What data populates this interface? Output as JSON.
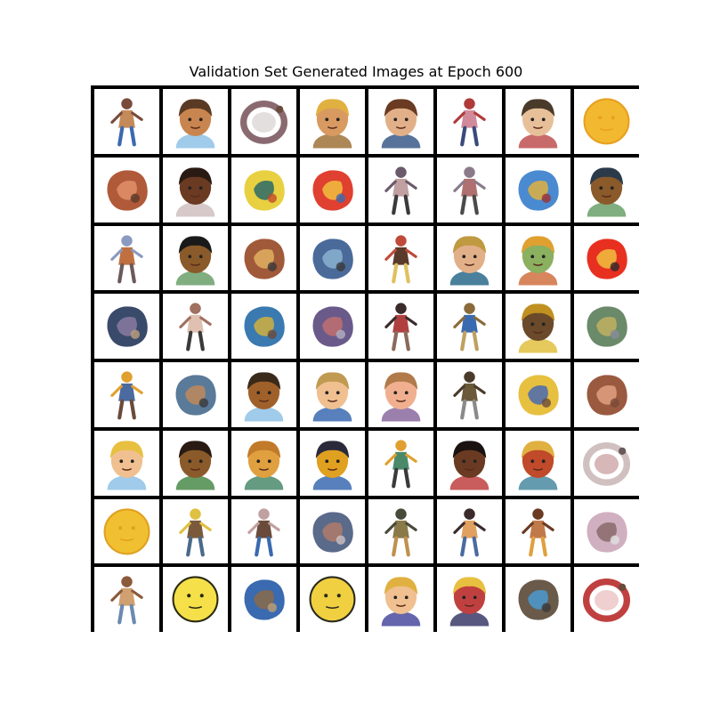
{
  "figure": {
    "title": "Validation Set Generated Images at Epoch 600",
    "rows": 8,
    "cols": 8,
    "frame_color": "#000000",
    "cell_background": "#ffffff"
  },
  "cells": [
    {
      "subject": "figure",
      "colors": [
        "#7a4a3a",
        "#c48a5a",
        "#3a6ab0"
      ]
    },
    {
      "subject": "face",
      "colors": [
        "#5a3a24",
        "#c9854f",
        "#8fc2e6"
      ]
    },
    {
      "subject": "ring",
      "colors": [
        "#8a6a70",
        "#c9c0c0",
        "#6a4a3a"
      ]
    },
    {
      "subject": "face",
      "colors": [
        "#e0b040",
        "#d89a60",
        "#a0723a"
      ]
    },
    {
      "subject": "face",
      "colors": [
        "#6a3a22",
        "#e2b088",
        "#3a5a8a"
      ]
    },
    {
      "subject": "figure",
      "colors": [
        "#b03a3a",
        "#d08a9a",
        "#3a4a7a"
      ]
    },
    {
      "subject": "face",
      "colors": [
        "#4a3a2a",
        "#e7c09a",
        "#c05050"
      ]
    },
    {
      "subject": "round",
      "colors": [
        "#f2b830",
        "#e8a020",
        "#2a1a10"
      ]
    },
    {
      "subject": "blob",
      "colors": [
        "#b05a3a",
        "#e0906a",
        "#5a3a2a"
      ]
    },
    {
      "subject": "face",
      "colors": [
        "#2a1a14",
        "#6a3a22",
        "#d0c0c0"
      ]
    },
    {
      "subject": "blob",
      "colors": [
        "#e8d040",
        "#2a6a6a",
        "#c04a2a"
      ]
    },
    {
      "subject": "blob",
      "colors": [
        "#e04030",
        "#f0c040",
        "#3a6ab0"
      ]
    },
    {
      "subject": "figure",
      "colors": [
        "#6a5a6a",
        "#c0a0a0",
        "#3a3a3a"
      ]
    },
    {
      "subject": "figure",
      "colors": [
        "#8a7a8a",
        "#b07070",
        "#4a4a4a"
      ]
    },
    {
      "subject": "blob",
      "colors": [
        "#4a8ad0",
        "#e0b040",
        "#a03030"
      ]
    },
    {
      "subject": "face",
      "colors": [
        "#2a3a4a",
        "#8a5a2a",
        "#6aa06a"
      ]
    },
    {
      "subject": "figure",
      "colors": [
        "#8a9ac0",
        "#c07040",
        "#6a5a5a"
      ]
    },
    {
      "subject": "face",
      "colors": [
        "#1a1a1a",
        "#8a5a2a",
        "#6aa06a"
      ]
    },
    {
      "subject": "blob",
      "colors": [
        "#a05a3a",
        "#e0b060",
        "#3a3a3a"
      ]
    },
    {
      "subject": "blob",
      "colors": [
        "#4a6a9a",
        "#8ab0d0",
        "#3a3a3a"
      ]
    },
    {
      "subject": "figure",
      "colors": [
        "#c04a3a",
        "#5a3a2a",
        "#e0c060"
      ]
    },
    {
      "subject": "face",
      "colors": [
        "#c09a40",
        "#e2b088",
        "#2a6a8a"
      ]
    },
    {
      "subject": "face",
      "colors": [
        "#e0a030",
        "#8ab060",
        "#d07040"
      ]
    },
    {
      "subject": "blob",
      "colors": [
        "#e83020",
        "#f0c040",
        "#2a2a2a"
      ]
    },
    {
      "subject": "blob",
      "colors": [
        "#3a4a6a",
        "#8a7aa0",
        "#c0a080"
      ]
    },
    {
      "subject": "figure",
      "colors": [
        "#a07060",
        "#e0c0b0",
        "#3a3a3a"
      ]
    },
    {
      "subject": "blob",
      "colors": [
        "#3a7ab0",
        "#d0b040",
        "#6a4a3a"
      ]
    },
    {
      "subject": "blob",
      "colors": [
        "#6a5a8a",
        "#c07070",
        "#b0b0c0"
      ]
    },
    {
      "subject": "figure",
      "colors": [
        "#3a2a2a",
        "#b04040",
        "#8a6a5a"
      ]
    },
    {
      "subject": "figure",
      "colors": [
        "#8a6a3a",
        "#3a6ab0",
        "#c0a060"
      ]
    },
    {
      "subject": "face",
      "colors": [
        "#c09020",
        "#6a4a2a",
        "#e0c040"
      ]
    },
    {
      "subject": "blob",
      "colors": [
        "#6a8a6a",
        "#c0b060",
        "#8a8a9a"
      ]
    },
    {
      "subject": "figure",
      "colors": [
        "#e0a030",
        "#4a6aa0",
        "#6a4a3a"
      ]
    },
    {
      "subject": "blob",
      "colors": [
        "#5a7a9a",
        "#c08a5a",
        "#3a3a3a"
      ]
    },
    {
      "subject": "face",
      "colors": [
        "#3a2a1a",
        "#a0602a",
        "#8fc2e6"
      ]
    },
    {
      "subject": "face",
      "colors": [
        "#c09a50",
        "#f0c090",
        "#3a6ab0"
      ]
    },
    {
      "subject": "face",
      "colors": [
        "#b07a4a",
        "#f0b090",
        "#8a6aa0"
      ]
    },
    {
      "subject": "figure",
      "colors": [
        "#4a3a2a",
        "#6a5a3a",
        "#8a8a8a"
      ]
    },
    {
      "subject": "blob",
      "colors": [
        "#e8c040",
        "#4a6ab0",
        "#6a4a3a"
      ]
    },
    {
      "subject": "blob",
      "colors": [
        "#9a5a40",
        "#e0a080",
        "#7a4a3a"
      ]
    },
    {
      "subject": "face",
      "colors": [
        "#e8c040",
        "#f0c090",
        "#8fc2e6"
      ]
    },
    {
      "subject": "face",
      "colors": [
        "#2a1a14",
        "#8a5a2a",
        "#4a8a4a"
      ]
    },
    {
      "subject": "face",
      "colors": [
        "#c07a2a",
        "#e0a040",
        "#4a8a6a"
      ]
    },
    {
      "subject": "face",
      "colors": [
        "#2a2a3a",
        "#e0a020",
        "#3a6ab0"
      ]
    },
    {
      "subject": "figure",
      "colors": [
        "#e0a030",
        "#4a8a6a",
        "#3a3a3a"
      ]
    },
    {
      "subject": "face",
      "colors": [
        "#1a1210",
        "#6a3a22",
        "#c04040"
      ]
    },
    {
      "subject": "face",
      "colors": [
        "#e0b040",
        "#c04a2a",
        "#4a8aa0"
      ]
    },
    {
      "subject": "ring",
      "colors": [
        "#d0c0c0",
        "#b07070",
        "#6a5a5a"
      ]
    },
    {
      "subject": "round",
      "colors": [
        "#f0c030",
        "#e0a020",
        "#3a2a10"
      ]
    },
    {
      "subject": "figure",
      "colors": [
        "#e0c040",
        "#7a5a3a",
        "#4a6a8a"
      ]
    },
    {
      "subject": "figure",
      "colors": [
        "#c0a0a0",
        "#6a4a3a",
        "#3a6ab0"
      ]
    },
    {
      "subject": "blob",
      "colors": [
        "#5a6a8a",
        "#b07a6a",
        "#d0c0c0"
      ]
    },
    {
      "subject": "figure",
      "colors": [
        "#4a4a3a",
        "#8a7a4a",
        "#c09050"
      ]
    },
    {
      "subject": "figure",
      "colors": [
        "#3a2a2a",
        "#e0a060",
        "#4a6aa0"
      ]
    },
    {
      "subject": "figure",
      "colors": [
        "#6a3a22",
        "#c07a4a",
        "#e0a040"
      ]
    },
    {
      "subject": "blob",
      "colors": [
        "#d0b0c0",
        "#8a6a6a",
        "#e0e0e0"
      ]
    },
    {
      "subject": "figure",
      "colors": [
        "#8a5a3a",
        "#d0a070",
        "#6a8ab0"
      ]
    },
    {
      "subject": "round",
      "colors": [
        "#f5e04a",
        "#2a2a10",
        "#e0c020"
      ]
    },
    {
      "subject": "blob",
      "colors": [
        "#3a6ab0",
        "#8a6a4a",
        "#c0a070"
      ]
    },
    {
      "subject": "round",
      "colors": [
        "#f0d040",
        "#2a2a20",
        "#3a6ab0"
      ]
    },
    {
      "subject": "face",
      "colors": [
        "#e0b040",
        "#f0c090",
        "#4a4aa0"
      ]
    },
    {
      "subject": "face",
      "colors": [
        "#e8c040",
        "#c04040",
        "#3a3a6a"
      ]
    },
    {
      "subject": "blob",
      "colors": [
        "#6a5a4a",
        "#4a9ad0",
        "#3a3a3a"
      ]
    },
    {
      "subject": "ring",
      "colors": [
        "#c04040",
        "#e0a0a0",
        "#6a4a3a"
      ]
    }
  ]
}
